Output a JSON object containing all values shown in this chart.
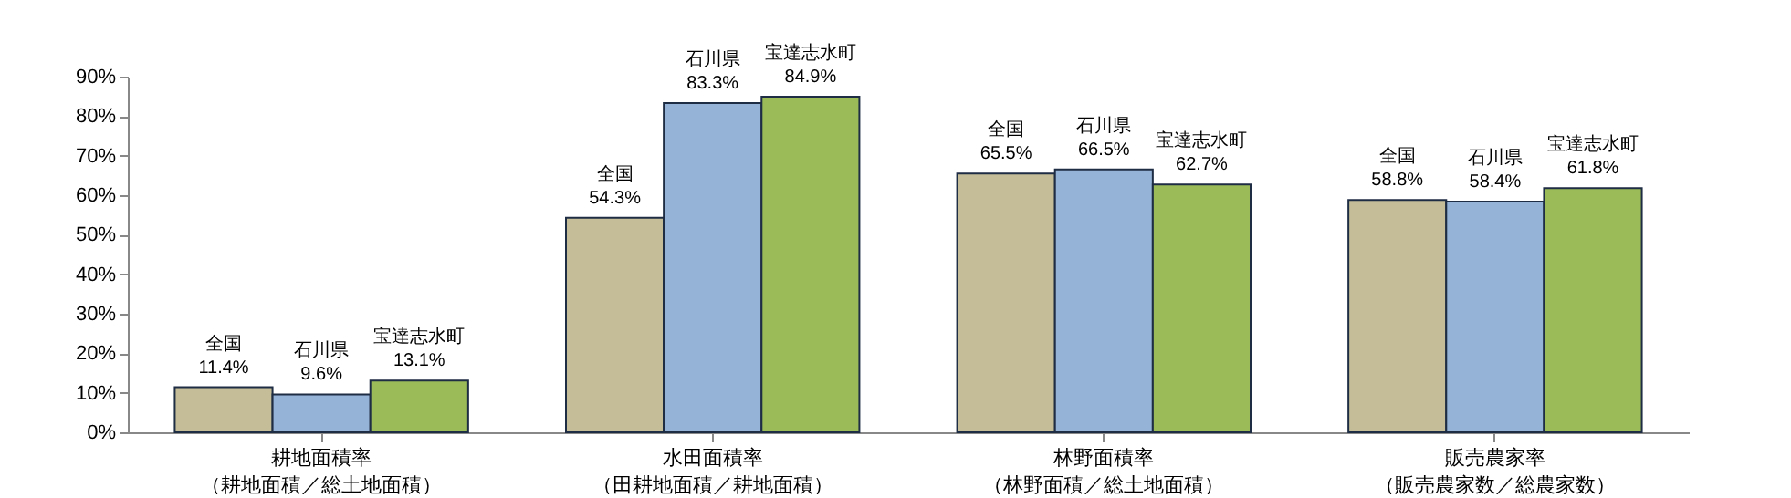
{
  "chart_data": {
    "type": "bar",
    "categories": [
      "耕地面積率（耕地面積／総土地面積）",
      "水田面積率（田耕地面積／耕地面積）",
      "林野面積率（林野面積／総土地面積）",
      "販売農家率（販売農家数／総農家数）"
    ],
    "series": [
      {
        "name": "全国",
        "color": "#c4bd97",
        "values": [
          11.4,
          54.3,
          65.5,
          58.8
        ],
        "value_labels": [
          "11.4%",
          "54.3%",
          "65.5%",
          "58.8%"
        ]
      },
      {
        "name": "石川県",
        "color": "#95b3d7",
        "values": [
          9.6,
          83.3,
          66.5,
          58.4
        ],
        "value_labels": [
          "9.6%",
          "83.3%",
          "66.5%",
          "58.4%"
        ]
      },
      {
        "name": "宝達志水町",
        "color": "#9bbb59",
        "values": [
          13.1,
          84.9,
          62.7,
          61.8
        ],
        "value_labels": [
          "13.1%",
          "84.9%",
          "62.7%",
          "61.8%"
        ]
      }
    ],
    "ylim": [
      0,
      90
    ],
    "yticks": [
      {
        "value": 0,
        "label": "0%"
      },
      {
        "value": 10,
        "label": "10%"
      },
      {
        "value": 20,
        "label": "20%"
      },
      {
        "value": 30,
        "label": "30%"
      },
      {
        "value": 40,
        "label": "40%"
      },
      {
        "value": 50,
        "label": "50%"
      },
      {
        "value": 60,
        "label": "60%"
      },
      {
        "value": 70,
        "label": "70%"
      },
      {
        "value": 80,
        "label": "80%"
      },
      {
        "value": 90,
        "label": "90%"
      }
    ],
    "grid": false,
    "legend": false
  }
}
